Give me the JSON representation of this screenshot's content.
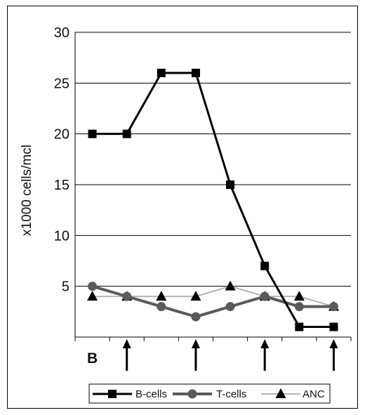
{
  "chart_data": {
    "type": "line",
    "ylabel": "x1000 cells/mcl",
    "ylim": [
      0,
      30
    ],
    "yticks": [
      "5",
      "10",
      "15",
      "20",
      "25",
      "30"
    ],
    "x": [
      1,
      2,
      3,
      4,
      5,
      6,
      7,
      8
    ],
    "grid": "horizontal",
    "legend_position": "bottom",
    "series": [
      {
        "name": "B-cells",
        "values": [
          20,
          20,
          26,
          26,
          15,
          7,
          1,
          1
        ],
        "color": "#000000",
        "marker": "square"
      },
      {
        "name": "T-cells",
        "values": [
          5,
          4,
          3,
          2,
          3,
          4,
          3,
          3
        ],
        "color": "#5a5a5a",
        "marker": "circle"
      },
      {
        "name": "ANC",
        "values": [
          4,
          4,
          4,
          4,
          5,
          4,
          4,
          3
        ],
        "color": "#b4b4b4",
        "marker": "triangle"
      }
    ],
    "annotations": {
      "baseline_label": "B",
      "arrow_positions": [
        2,
        4,
        6,
        8
      ]
    }
  }
}
